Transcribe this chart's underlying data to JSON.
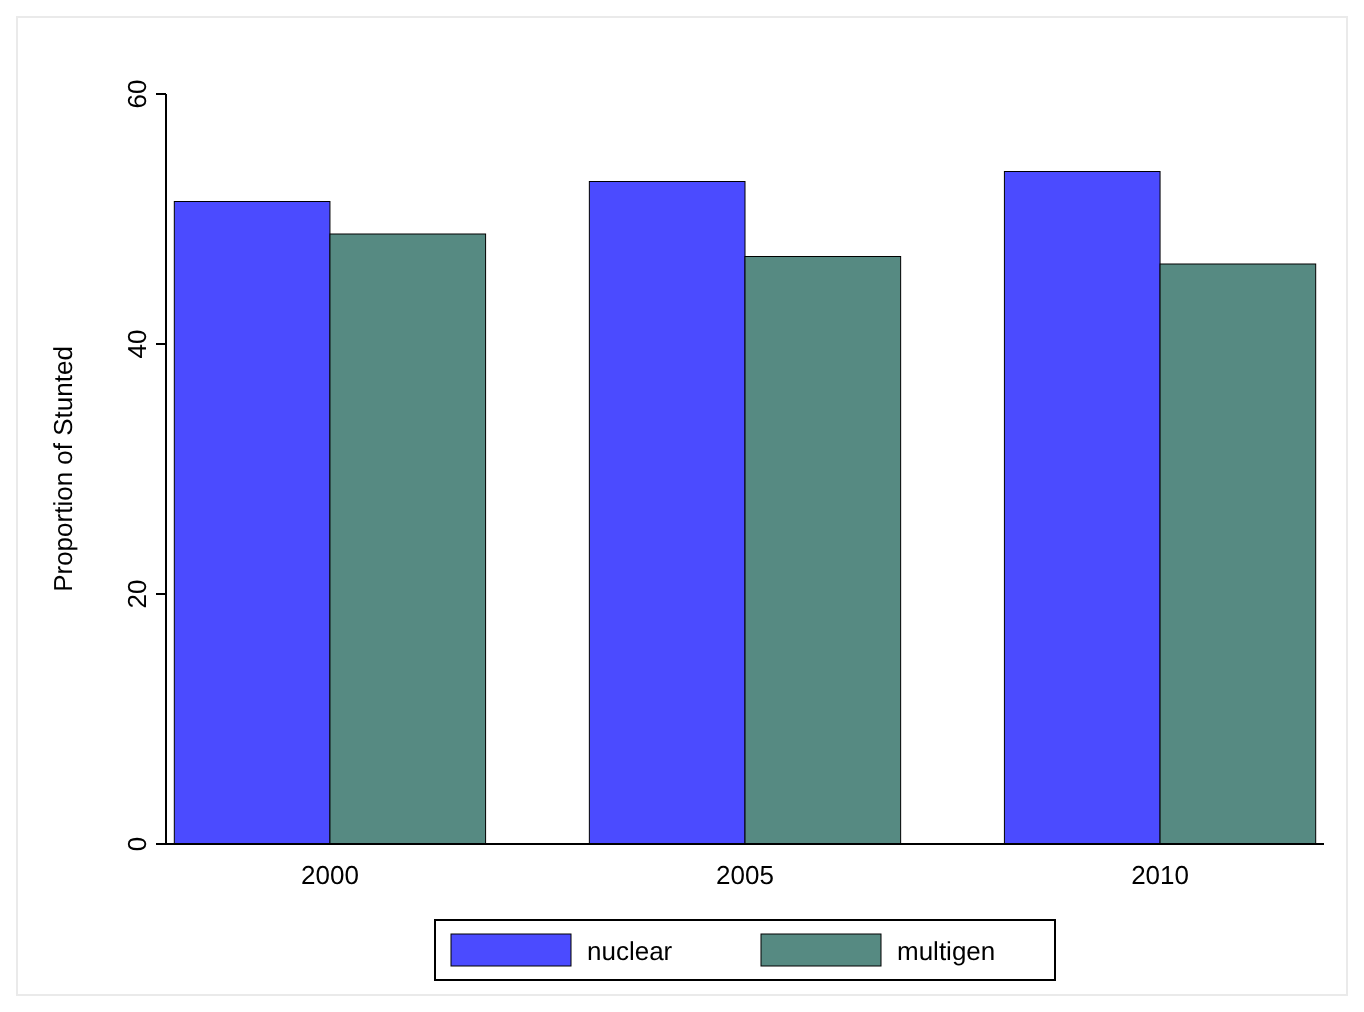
{
  "chart_data": {
    "type": "bar",
    "ylabel": "Proportion of Stunted",
    "categories": [
      "2000",
      "2005",
      "2010"
    ],
    "series": [
      {
        "name": "nuclear",
        "color": "#4b4bff",
        "values": [
          51.4,
          53.0,
          53.8
        ]
      },
      {
        "name": "multigen",
        "color": "#568a82",
        "values": [
          48.8,
          47.0,
          46.4
        ]
      }
    ],
    "ylim": [
      0,
      60
    ],
    "yticks": [
      0,
      20,
      40,
      60
    ],
    "grid": false,
    "legend": "bottom"
  }
}
